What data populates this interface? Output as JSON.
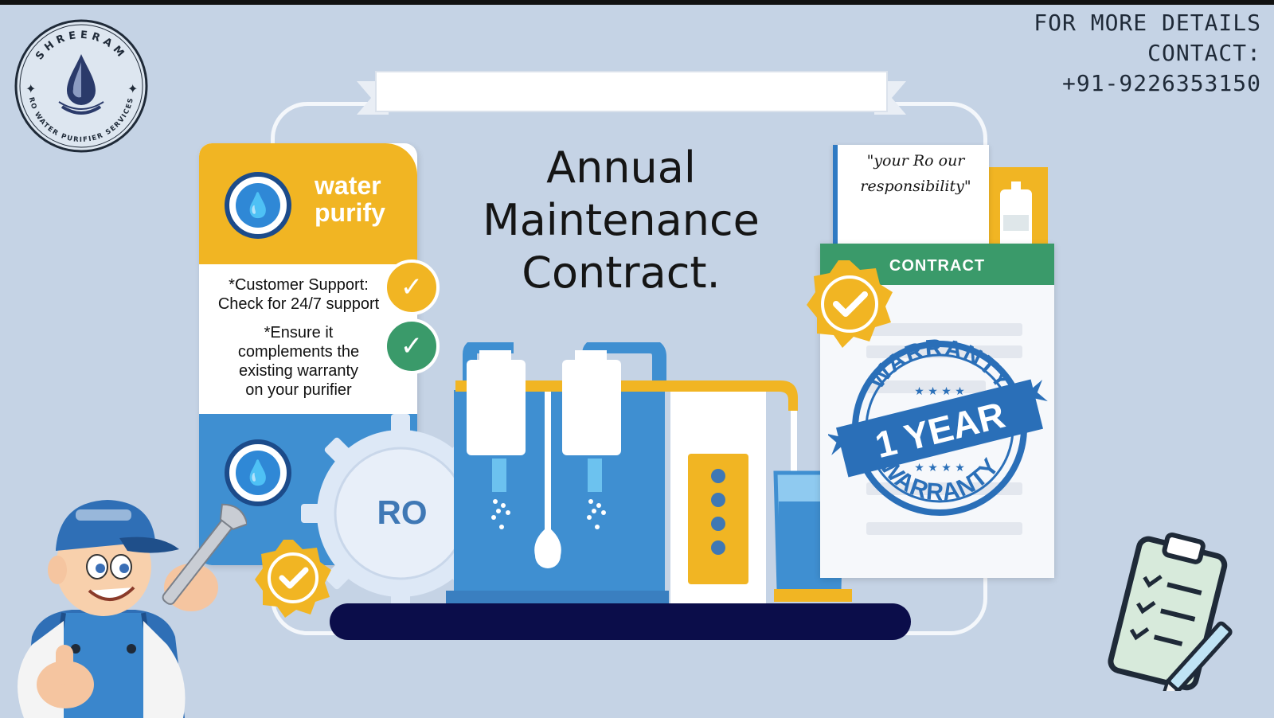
{
  "logo": {
    "top_text": "SHREERAM",
    "bottom_text": "RO WATER PURIFIER SERVICES"
  },
  "contact": {
    "line1": "FOR MORE DETAILS",
    "line2": "CONTACT:",
    "phone": "+91-9226353150"
  },
  "title": {
    "line1": "Annual",
    "line2": "Maintenance",
    "line3": "Contract."
  },
  "left_panel": {
    "heading_line1": "water",
    "heading_line2": "purify",
    "bullet1_line1": "*Customer Support:",
    "bullet1_line2": "Check for 24/7 support",
    "bullet2_line1": "*Ensure it",
    "bullet2_line2": "complements the",
    "bullet2_line3": "existing warranty",
    "bullet2_line4": "on your purifier",
    "ro_label": "RO"
  },
  "slogan": {
    "line1": "\"your Ro our",
    "line2": "responsibility\""
  },
  "contract": {
    "header": "CONTRACT"
  },
  "warranty": {
    "top": "WARRANTY",
    "middle": "1 YEAR",
    "bottom": "WARRANTY"
  },
  "colors": {
    "background": "#c5d3e5",
    "yellow": "#f1b523",
    "blue": "#3f8fd1",
    "green": "#3a9a6a",
    "navy": "#0b0d4a",
    "stamp_blue": "#2a6fb8"
  },
  "icons": {
    "water_drop": "water-drop-icon",
    "check": "check-icon",
    "clipboard": "clipboard-icon",
    "wrench": "wrench-icon"
  }
}
